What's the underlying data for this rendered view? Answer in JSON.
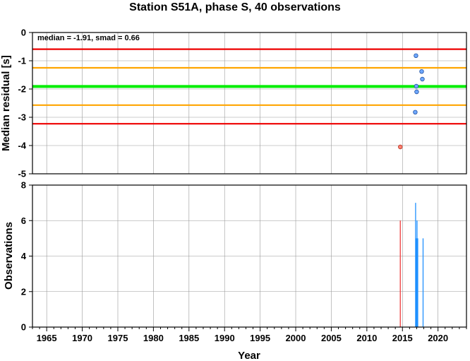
{
  "title": "Station S51A, phase S, 40 observations",
  "colors": {
    "median_line": "#00ee00",
    "smad2_line": "#ffa500",
    "smad4_line": "#ee0000",
    "point_normal": "#6fa8ff",
    "point_outlier": "#ff7f6f",
    "bar_normal": "#1e90ff",
    "bar_outlier": "#ee3b3b"
  },
  "chart_data": [
    {
      "type": "scatter",
      "ylabel": "Median residual [s]",
      "annotation": "median = -1.91, smad = 0.66",
      "xlim": [
        1963,
        2024
      ],
      "ylim": [
        -5,
        0
      ],
      "ytick_labels": [
        "0",
        "-1",
        "-2",
        "-3",
        "-4",
        "-5"
      ],
      "yticks": [
        0,
        -1,
        -2,
        -3,
        -4,
        -5
      ],
      "reference_lines": [
        {
          "y": -0.59,
          "color": "red"
        },
        {
          "y": -1.25,
          "color": "orange"
        },
        {
          "y": -1.91,
          "color": "green"
        },
        {
          "y": -2.57,
          "color": "orange"
        },
        {
          "y": -3.23,
          "color": "red"
        }
      ],
      "points": [
        {
          "x": 2014.7,
          "y": -4.05,
          "outlier": true
        },
        {
          "x": 2016.8,
          "y": -2.82,
          "outlier": false
        },
        {
          "x": 2016.9,
          "y": -0.82,
          "outlier": false
        },
        {
          "x": 2016.95,
          "y": -1.9,
          "outlier": false
        },
        {
          "x": 2017.0,
          "y": -2.1,
          "outlier": false
        },
        {
          "x": 2017.7,
          "y": -1.38,
          "outlier": false
        },
        {
          "x": 2017.8,
          "y": -1.65,
          "outlier": false
        }
      ]
    },
    {
      "type": "bar",
      "xlabel": "Year",
      "ylabel": "Observations",
      "xlim": [
        1963,
        2024
      ],
      "ylim": [
        0,
        8
      ],
      "xticks": [
        1965,
        1970,
        1975,
        1980,
        1985,
        1990,
        1995,
        2000,
        2005,
        2010,
        2015,
        2020
      ],
      "xtick_labels": [
        "1965",
        "1970",
        "1975",
        "1980",
        "1985",
        "1990",
        "1995",
        "2000",
        "2005",
        "2010",
        "2015",
        "2020"
      ],
      "yticks": [
        0,
        2,
        4,
        6,
        8
      ],
      "ytick_labels": [
        "0",
        "2",
        "4",
        "6",
        "8"
      ],
      "bars": [
        {
          "x": 2014.7,
          "value": 6,
          "outlier": true
        },
        {
          "x": 2016.85,
          "value": 7,
          "outlier": false
        },
        {
          "x": 2016.95,
          "value": 5,
          "outlier": false
        },
        {
          "x": 2017.05,
          "value": 6,
          "outlier": false
        },
        {
          "x": 2017.15,
          "value": 5,
          "outlier": false
        },
        {
          "x": 2017.9,
          "value": 5,
          "outlier": false
        }
      ]
    }
  ]
}
